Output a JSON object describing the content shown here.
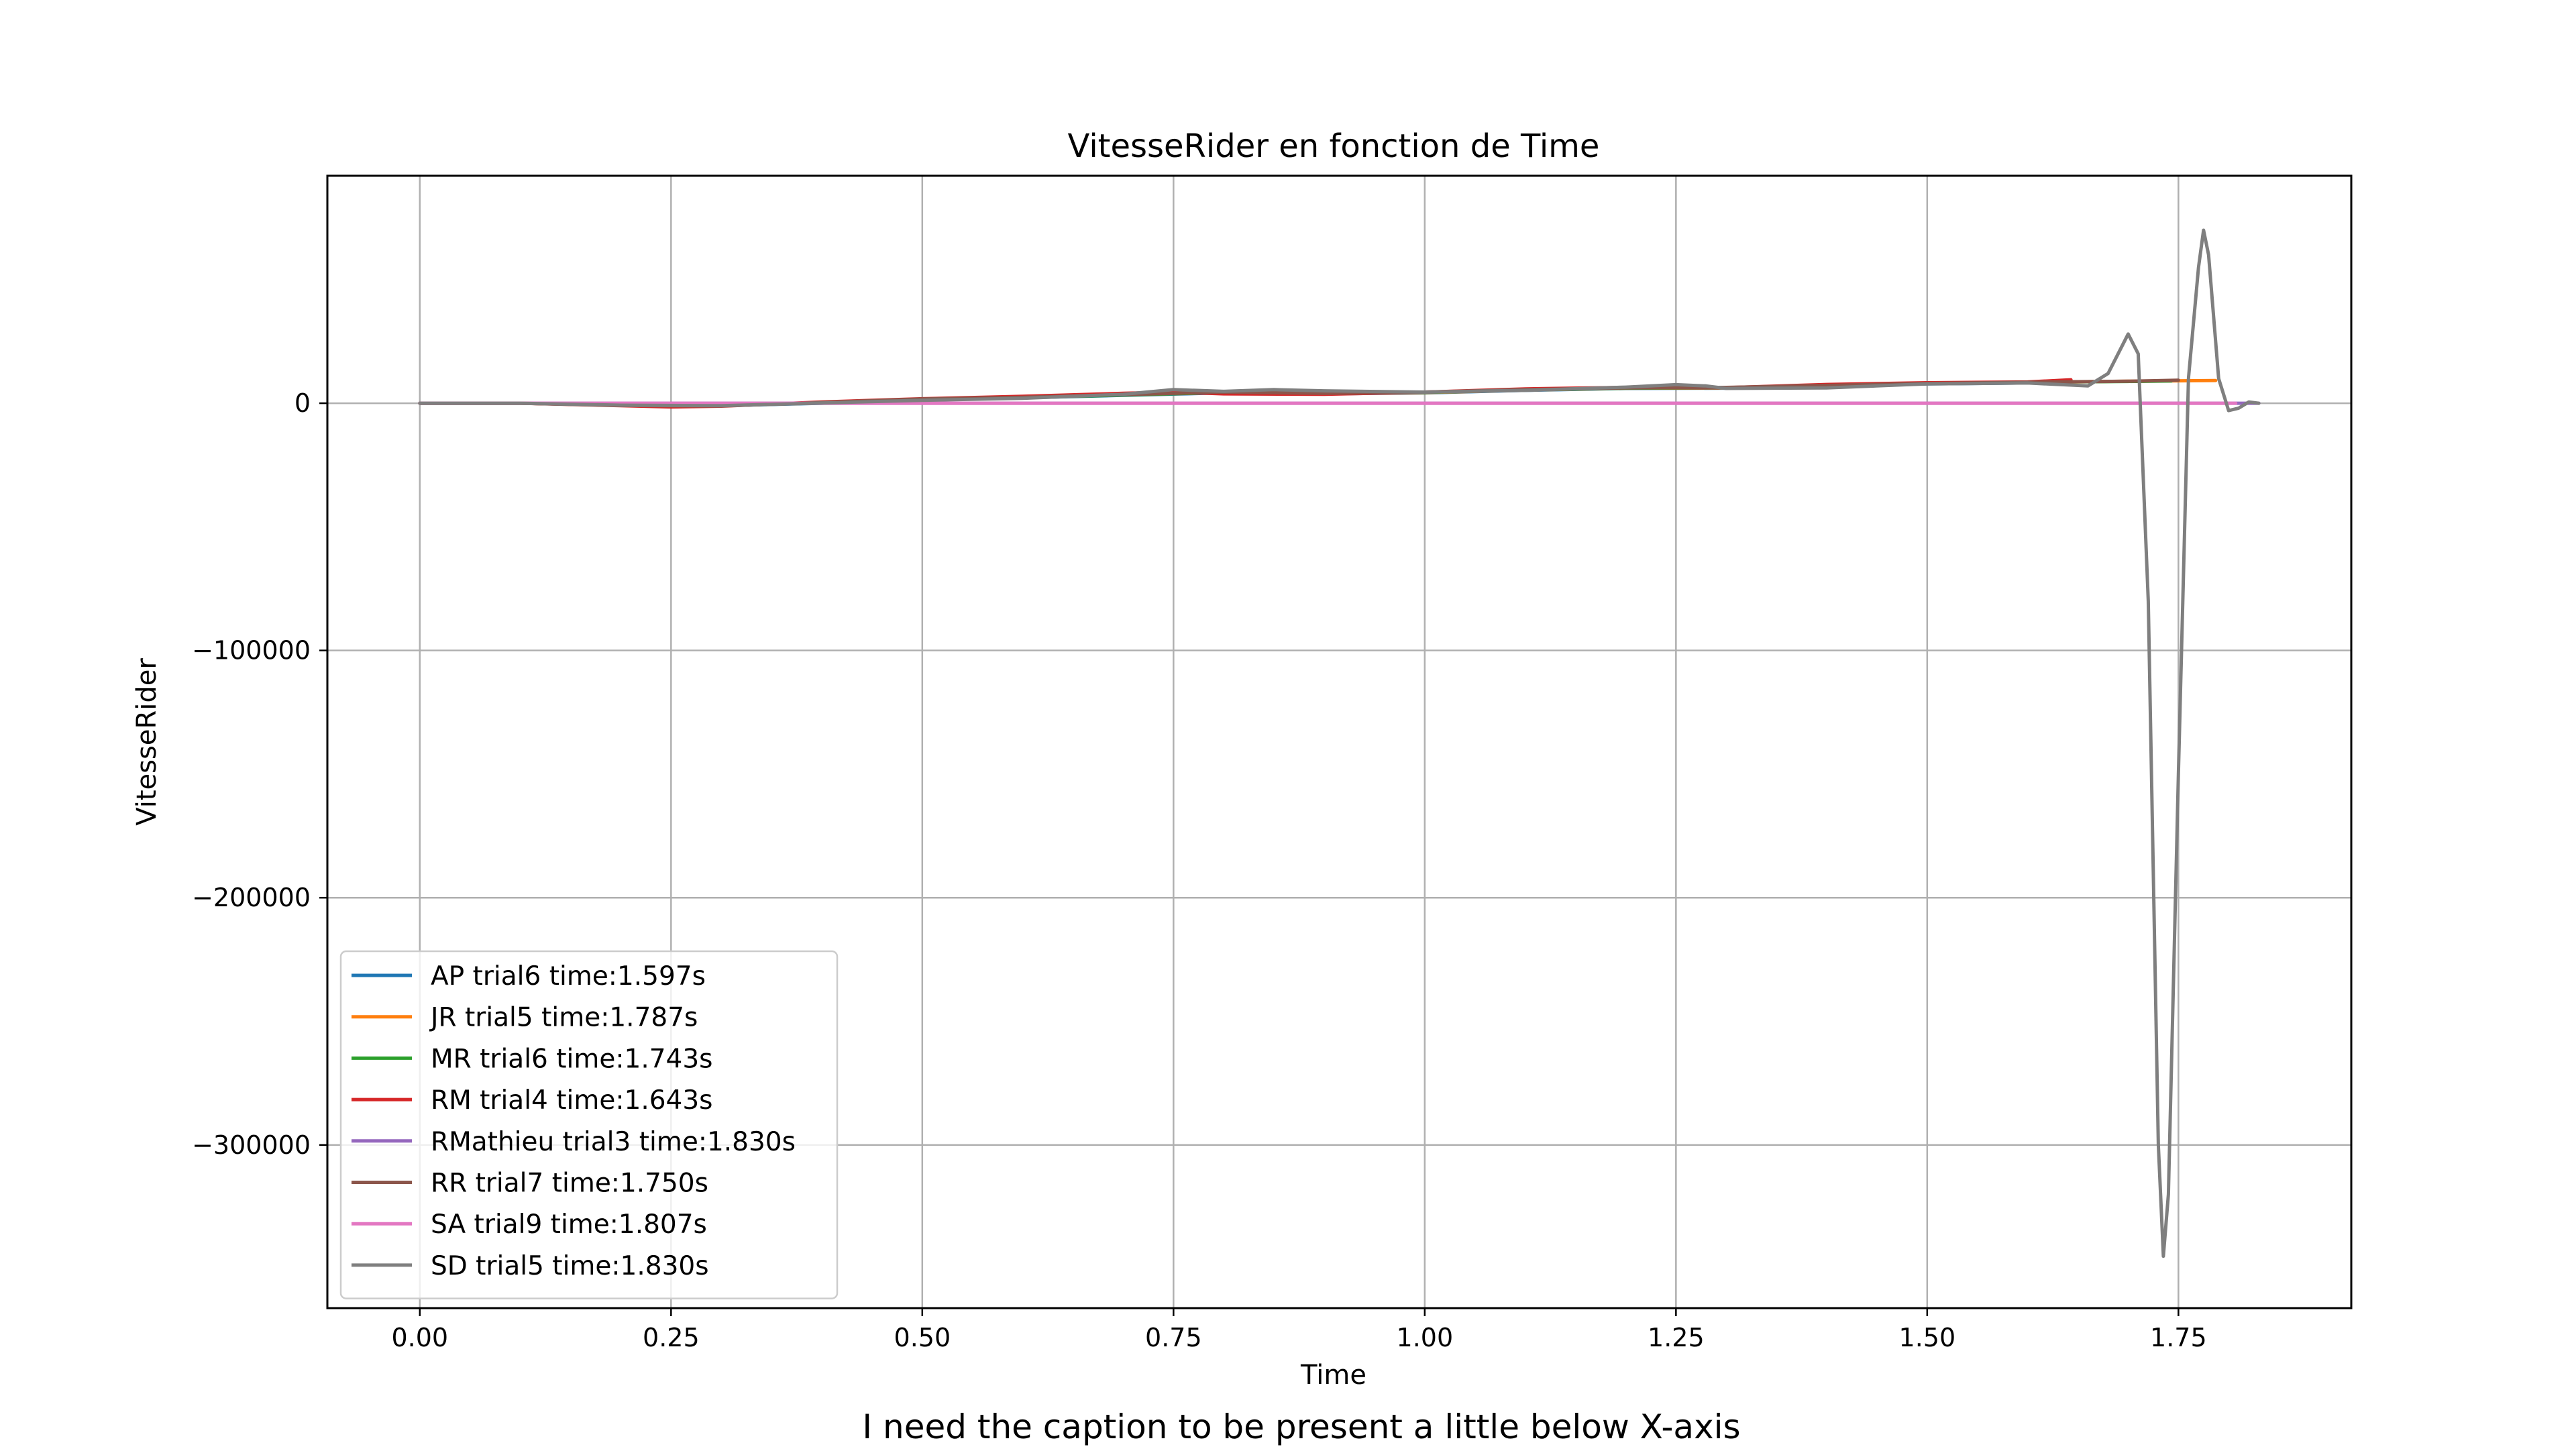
{
  "caption": "I need the caption to be present a little below X-axis",
  "chart_data": {
    "type": "line",
    "title": "VitesseRider en fonction de Time",
    "xlabel": "Time",
    "ylabel": "VitesseRider",
    "xlim": [
      -0.092,
      1.922
    ],
    "ylim": [
      -366000,
      92000
    ],
    "xticks": [
      0.0,
      0.25,
      0.5,
      0.75,
      1.0,
      1.25,
      1.5,
      1.75
    ],
    "xtick_labels": [
      "0.00",
      "0.25",
      "0.50",
      "0.75",
      "1.00",
      "1.25",
      "1.50",
      "1.75"
    ],
    "yticks": [
      0,
      -100000,
      -200000,
      -300000
    ],
    "ytick_labels": [
      "0",
      "−100000",
      "−200000",
      "−300000"
    ],
    "grid": true,
    "legend_position": "lower-left",
    "series": [
      {
        "name": "AP trial6 time:1.597s",
        "color": "#1f77b4",
        "x": [
          0,
          0.1,
          0.2,
          0.3,
          0.4,
          0.5,
          0.6,
          0.7,
          0.8,
          0.9,
          1.0,
          1.1,
          1.2,
          1.3,
          1.4,
          1.5,
          1.597
        ],
        "y": [
          0,
          0,
          -800,
          -1000,
          0,
          1500,
          2200,
          3200,
          4200,
          3800,
          4200,
          5200,
          6000,
          6100,
          7000,
          7800,
          8200
        ]
      },
      {
        "name": "JR trial5 time:1.787s",
        "color": "#ff7f0e",
        "x": [
          0,
          0.1,
          0.2,
          0.3,
          0.4,
          0.5,
          0.6,
          0.7,
          0.8,
          0.9,
          1.0,
          1.1,
          1.2,
          1.3,
          1.4,
          1.5,
          1.6,
          1.7,
          1.787
        ],
        "y": [
          0,
          0,
          -700,
          -900,
          100,
          1500,
          2300,
          3400,
          4300,
          3900,
          4300,
          5300,
          6100,
          6200,
          7100,
          7900,
          8400,
          8900,
          9200
        ]
      },
      {
        "name": "MR trial6 time:1.743s",
        "color": "#2ca02c",
        "x": [
          0,
          0.1,
          0.2,
          0.3,
          0.4,
          0.5,
          0.6,
          0.7,
          0.8,
          0.9,
          1.0,
          1.1,
          1.2,
          1.3,
          1.4,
          1.5,
          1.6,
          1.7,
          1.743
        ],
        "y": [
          0,
          0,
          -600,
          -900,
          200,
          1600,
          2300,
          3300,
          4400,
          3900,
          4400,
          5400,
          6100,
          6300,
          7100,
          8000,
          8500,
          8800,
          9000
        ]
      },
      {
        "name": "RM trial4 time:1.643s",
        "color": "#d62728",
        "x": [
          0,
          0.1,
          0.2,
          0.25,
          0.3,
          0.4,
          0.5,
          0.6,
          0.7,
          0.75,
          0.8,
          0.9,
          1.0,
          1.1,
          1.2,
          1.3,
          1.4,
          1.5,
          1.6,
          1.643
        ],
        "y": [
          0,
          0,
          -1000,
          -1500,
          -1200,
          500,
          1800,
          2800,
          4000,
          4500,
          3800,
          3600,
          4500,
          5800,
          6400,
          6300,
          7600,
          8300,
          8600,
          9500
        ]
      },
      {
        "name": "RMathieu trial3 time:1.830s",
        "color": "#9467bd",
        "x": [
          0,
          0.2,
          0.4,
          0.6,
          0.8,
          1.0,
          1.2,
          1.4,
          1.6,
          1.83
        ],
        "y": [
          0,
          0,
          0,
          0,
          0,
          0,
          0,
          0,
          0,
          0
        ]
      },
      {
        "name": "RR trial7 time:1.750s",
        "color": "#8c564b",
        "x": [
          0,
          0.1,
          0.2,
          0.3,
          0.4,
          0.5,
          0.6,
          0.7,
          0.8,
          0.9,
          1.0,
          1.1,
          1.2,
          1.3,
          1.4,
          1.5,
          1.6,
          1.7,
          1.75
        ],
        "y": [
          0,
          0,
          -900,
          -1100,
          300,
          1700,
          2400,
          3500,
          4500,
          4000,
          4500,
          5500,
          6200,
          6400,
          7200,
          8000,
          8500,
          8900,
          9300
        ]
      },
      {
        "name": "SA trial9 time:1.807s",
        "color": "#e377c2",
        "x": [
          0,
          0.3,
          0.6,
          0.9,
          1.2,
          1.5,
          1.807
        ],
        "y": [
          0,
          0,
          0,
          0,
          0,
          0,
          0
        ]
      },
      {
        "name": "SD trial5 time:1.830s",
        "color": "#7f7f7f",
        "x": [
          0,
          0.1,
          0.2,
          0.3,
          0.4,
          0.5,
          0.6,
          0.7,
          0.75,
          0.8,
          0.85,
          0.9,
          1.0,
          1.1,
          1.2,
          1.25,
          1.28,
          1.3,
          1.4,
          1.5,
          1.6,
          1.66,
          1.68,
          1.7,
          1.71,
          1.72,
          1.73,
          1.735,
          1.74,
          1.75,
          1.76,
          1.77,
          1.775,
          1.78,
          1.79,
          1.8,
          1.81,
          1.82,
          1.83
        ],
        "y": [
          0,
          0,
          -800,
          -1000,
          100,
          1200,
          2000,
          3600,
          5500,
          4800,
          5500,
          5000,
          4500,
          5200,
          6500,
          7500,
          7000,
          6000,
          6200,
          7800,
          8200,
          7000,
          12000,
          28000,
          20000,
          -80000,
          -300000,
          -345000,
          -320000,
          -150000,
          10000,
          55000,
          70000,
          60000,
          10000,
          -3000,
          -2000,
          500,
          0
        ]
      }
    ]
  }
}
